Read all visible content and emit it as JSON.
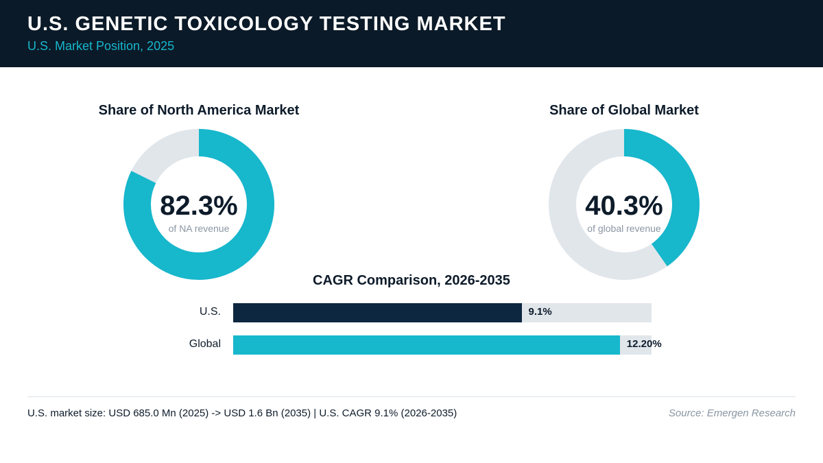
{
  "header": {
    "title": "U.S. GENETIC TOXICOLOGY TESTING MARKET",
    "subtitle": "U.S. Market Position, 2025"
  },
  "colors": {
    "header_bg": "#0b1a28",
    "accent_teal": "#17b7cc",
    "dark_navy": "#0e2740",
    "track_gray": "#e1e6eb"
  },
  "chart_data": [
    {
      "type": "pie",
      "title": "Share of North America Market",
      "display_value": "82.3%",
      "caption": "of NA revenue",
      "value": 82.3,
      "max": 100
    },
    {
      "type": "pie",
      "title": "Share of Global Market",
      "display_value": "40.3%",
      "caption": "of global revenue",
      "value": 40.3,
      "max": 100
    },
    {
      "type": "bar",
      "title": "CAGR Comparison, 2026-2035",
      "categories": [
        "U.S.",
        "Global"
      ],
      "values": [
        9.1,
        12.2
      ],
      "value_labels": [
        "9.1%",
        "12.20%"
      ],
      "xlim": [
        0,
        13.2
      ]
    }
  ],
  "footer": {
    "note": "U.S. market size: USD 685.0 Mn (2025) -> USD 1.6 Bn (2035)  |  U.S. CAGR 9.1% (2026-2035)",
    "source": "Source: Emergen Research"
  }
}
